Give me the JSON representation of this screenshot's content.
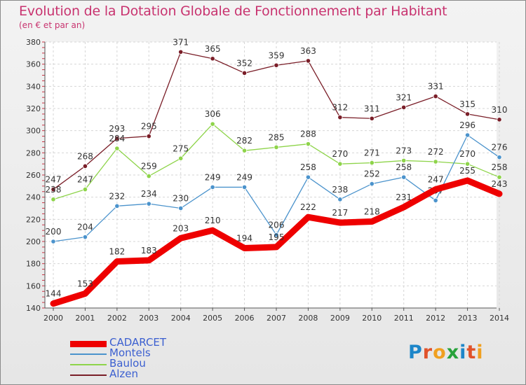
{
  "title": "Evolution de la Dotation Globale de Fonctionnement par Habitant",
  "subtitle": "(en € et par an)",
  "logo": [
    "P",
    "r",
    "o",
    "x",
    "i",
    "t",
    "i"
  ],
  "logo_colors": [
    "#1d86c9",
    "#e0522a",
    "#f0a020",
    "#27a23a",
    "#1d86c9",
    "#e0522a",
    "#f0a020"
  ],
  "chart_data": {
    "type": "line",
    "x": [
      "2000",
      "2001",
      "2002",
      "2003",
      "2004",
      "2005",
      "2006",
      "2007",
      "2008",
      "2009",
      "2010",
      "2011",
      "2012",
      "2013",
      "2014"
    ],
    "ylim": [
      140,
      380
    ],
    "yticks": [
      140,
      160,
      180,
      200,
      220,
      240,
      260,
      280,
      300,
      320,
      340,
      360,
      380
    ],
    "grid": true,
    "legend_position": "bottom-left",
    "series": [
      {
        "name": "Alzen",
        "color": "#7a1e28",
        "values": [
          247,
          268,
          293,
          295,
          371,
          365,
          352,
          359,
          363,
          312,
          311,
          321,
          331,
          315,
          310
        ]
      },
      {
        "name": "Baulou",
        "color": "#8ed44a",
        "values": [
          238,
          247,
          284,
          259,
          275,
          306,
          282,
          285,
          288,
          270,
          271,
          273,
          272,
          270,
          258
        ]
      },
      {
        "name": "Montels",
        "color": "#4b93cc",
        "values": [
          200,
          204,
          232,
          234,
          230,
          249,
          249,
          206,
          258,
          238,
          252,
          258,
          237,
          296,
          276
        ]
      },
      {
        "name": "CADARCET",
        "color": "#ee0000",
        "values": [
          144,
          153,
          182,
          183,
          203,
          210,
          194,
          195,
          222,
          217,
          218,
          231,
          247,
          255,
          243
        ]
      }
    ],
    "legend": [
      {
        "name": "CADARCET",
        "color": "#ee0000"
      },
      {
        "name": "Montels",
        "color": "#4b93cc"
      },
      {
        "name": "Baulou",
        "color": "#8ed44a"
      },
      {
        "name": "Alzen",
        "color": "#7a1e28"
      }
    ]
  }
}
